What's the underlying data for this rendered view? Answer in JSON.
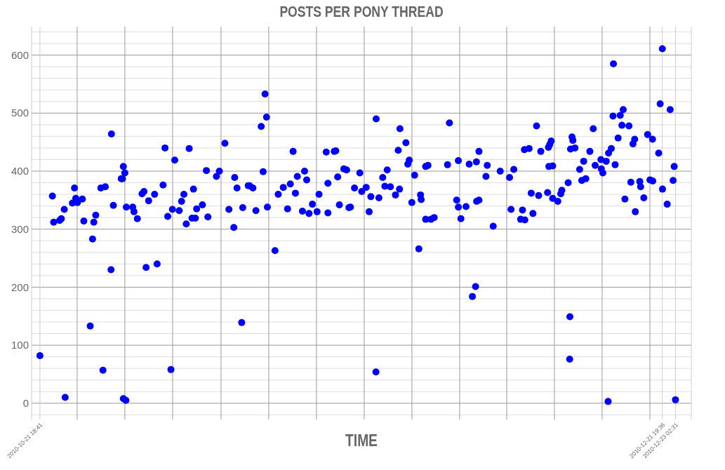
{
  "chart_data": {
    "type": "scatter",
    "title": "POSTS PER PONY THREAD",
    "xlabel": "TIME",
    "xlim": [
      "2010-10-20T23:00",
      "2010-12-24T15:48"
    ],
    "xticks": [
      {
        "value": "2010-10-21T18:41",
        "label": "2010-10-21 18:41"
      },
      {
        "value": "2010-10-25T10:18",
        "label": null
      },
      {
        "value": "2010-10-30T02:36",
        "label": null
      },
      {
        "value": "2010-11-03T18:54",
        "label": null
      },
      {
        "value": "2010-11-08T12:54",
        "label": null
      },
      {
        "value": "2010-11-13T05:12",
        "label": null
      },
      {
        "value": "2010-11-17T21:36",
        "label": null
      },
      {
        "value": "2010-11-22T13:54",
        "label": null
      },
      {
        "value": "2010-11-27T06:12",
        "label": null
      },
      {
        "value": "2010-12-01T22:36",
        "label": null
      },
      {
        "value": "2010-12-06T13:18",
        "label": null
      },
      {
        "value": "2010-12-11T05:36",
        "label": null
      },
      {
        "value": "2010-12-15T21:54",
        "label": null
      },
      {
        "value": "2010-12-20T14:18",
        "label": null
      },
      {
        "value": "2010-12-21T19:36",
        "label": "2010-12-21 19:36"
      },
      {
        "value": "2010-12-23T02:31",
        "label": "2010-12-23 02:31"
      }
    ],
    "ylim": [
      -28,
      649
    ],
    "yticks": [
      {
        "value": -20,
        "label": null
      },
      0,
      {
        "value": 20,
        "label": null
      },
      {
        "value": 40,
        "label": null
      },
      {
        "value": 60,
        "label": null
      },
      {
        "value": 80,
        "label": null
      },
      100,
      {
        "value": 120,
        "label": null
      },
      {
        "value": 140,
        "label": null
      },
      {
        "value": 160,
        "label": null
      },
      {
        "value": 180,
        "label": null
      },
      200,
      {
        "value": 220,
        "label": null
      },
      {
        "value": 240,
        "label": null
      },
      {
        "value": 260,
        "label": null
      },
      {
        "value": 280,
        "label": null
      },
      300,
      {
        "value": 320,
        "label": null
      },
      {
        "value": 340,
        "label": null
      },
      {
        "value": 360,
        "label": null
      },
      {
        "value": 380,
        "label": null
      },
      400,
      {
        "value": 420,
        "label": null
      },
      {
        "value": 440,
        "label": null
      },
      {
        "value": 460,
        "label": null
      },
      {
        "value": 480,
        "label": null
      },
      500,
      {
        "value": 520,
        "label": null
      },
      {
        "value": 540,
        "label": null
      },
      {
        "value": 560,
        "label": null
      },
      {
        "value": 580,
        "label": null
      },
      600,
      {
        "value": 620,
        "label": null
      },
      {
        "value": 640,
        "label": null
      }
    ],
    "grid": true,
    "marker": "circle",
    "series": [
      {
        "color": "#0000ff",
        "x": [
          "2010-10-21T18:41",
          "2010-10-23T00:00",
          "2010-10-23T03:00",
          "2010-10-23T17:00",
          "2010-10-23T21:00",
          "2010-10-24T04:00",
          "2010-10-24T06:00",
          "2010-10-24T23:00",
          "2010-10-25T04:00",
          "2010-10-25T07:00",
          "2010-10-25T11:00",
          "2010-10-25T22:30",
          "2010-10-26T02:00",
          "2010-10-26T17:00",
          "2010-10-26T22:30",
          "2010-10-27T01:30",
          "2010-10-27T06:00",
          "2010-10-27T18:00",
          "2010-10-27T23:00",
          "2010-10-28T04:30",
          "2010-10-28T18:00",
          "2010-10-28T19:00",
          "2010-10-28T23:30",
          "2010-10-29T18:00",
          "2010-10-29T21:00",
          "2010-10-29T23:00",
          "2010-10-29T23:00",
          "2010-10-30T02:30",
          "2010-10-30T05:00",
          "2010-10-30T06:00",
          "2010-10-30T21:00",
          "2010-10-31T00:00",
          "2010-10-31T08:00",
          "2010-10-31T19:00",
          "2010-10-31T23:30",
          "2010-11-01T04:30",
          "2010-11-01T10:30",
          "2010-11-02T00:30",
          "2010-11-02T06:30",
          "2010-11-02T20:30",
          "2010-11-03T01:00",
          "2010-11-03T07:30",
          "2010-11-03T15:00",
          "2010-11-03T18:30",
          "2010-11-04T00:00",
          "2010-11-04T10:30",
          "2010-11-04T16:00",
          "2010-11-04T21:30",
          "2010-11-05T03:00",
          "2010-11-05T10:00",
          "2010-11-05T16:30",
          "2010-11-05T20:00",
          "2010-11-06T00:30",
          "2010-11-06T03:30",
          "2010-11-06T17:00",
          "2010-11-07T02:30",
          "2010-11-07T06:00",
          "2010-11-08T02:00",
          "2010-11-08T09:00",
          "2010-11-08T22:00",
          "2010-11-09T07:30",
          "2010-11-09T19:00",
          "2010-11-09T21:00",
          "2010-11-10T02:30",
          "2010-11-10T13:30",
          "2010-11-10T16:00",
          "2010-11-11T05:00",
          "2010-11-11T08:00",
          "2010-11-11T16:00",
          "2010-11-11T23:00",
          "2010-11-12T11:30",
          "2010-11-12T16:00",
          "2010-11-12T20:30",
          "2010-11-13T00:00",
          "2010-11-13T02:00",
          "2010-11-13T20:00",
          "2010-11-14T03:30",
          "2010-11-14T15:30",
          "2010-11-15T01:30",
          "2010-11-15T08:00",
          "2010-11-15T14:30",
          "2010-11-15T20:00",
          "2010-11-16T00:30",
          "2010-11-16T12:30",
          "2010-11-16T17:30",
          "2010-11-16T22:30",
          "2010-11-17T04:00",
          "2010-11-17T12:00",
          "2010-11-17T23:00",
          "2010-11-18T03:30",
          "2010-11-18T20:30",
          "2010-11-19T00:30",
          "2010-11-19T00:30",
          "2010-11-19T15:30",
          "2010-11-19T19:00",
          "2010-11-19T23:30",
          "2010-11-20T03:30",
          "2010-11-20T14:00",
          "2010-11-20T20:30",
          "2010-11-21T02:00",
          "2010-11-21T05:30",
          "2010-11-21T15:00",
          "2010-11-22T03:30",
          "2010-11-22T08:00",
          "2010-11-22T18:30",
          "2010-11-23T01:30",
          "2010-11-23T05:30",
          "2010-11-23T17:30",
          "2010-11-23T18:00",
          "2010-11-24T00:30",
          "2010-11-24T09:30",
          "2010-11-24T14:30",
          "2010-11-24T20:00",
          "2010-11-25T03:30",
          "2010-11-25T15:30",
          "2010-11-25T22:00",
          "2010-11-26T01:00",
          "2010-11-26T02:00",
          "2010-11-26T16:00",
          "2010-11-26T20:30",
          "2010-11-27T00:00",
          "2010-11-27T06:00",
          "2010-11-27T12:30",
          "2010-11-27T22:30",
          "2010-11-28T02:30",
          "2010-11-28T04:00",
          "2010-11-28T14:30",
          "2010-11-28T14:30",
          "2010-11-28T20:00",
          "2010-11-29T03:00",
          "2010-11-29T10:30",
          "2010-11-30T18:00",
          "2010-11-30T22:30",
          "2010-12-01T15:30",
          "2010-12-01T19:30",
          "2010-12-01T19:30",
          "2010-12-02T01:30",
          "2010-12-02T13:30",
          "2010-12-02T21:00",
          "2010-12-03T04:30",
          "2010-12-03T12:00",
          "2010-12-03T14:30",
          "2010-12-03T14:00",
          "2010-12-03T20:00",
          "2010-12-03T20:00",
          "2010-12-04T12:30",
          "2010-12-04T15:30",
          "2010-12-05T05:30",
          "2010-12-05T22:00",
          "2010-12-06T20:00",
          "2010-12-06T23:30",
          "2010-12-07T06:00",
          "2010-12-07T22:00",
          "2010-12-08T02:30",
          "2010-12-08T07:00",
          "2010-12-08T08:00",
          "2010-12-08T18:00",
          "2010-12-08T23:00",
          "2010-12-09T03:00",
          "2010-12-09T11:30",
          "2010-12-09T16:30",
          "2010-12-09T21:30",
          "2010-12-10T13:30",
          "2010-12-10T15:30",
          "2010-12-10T16:30",
          "2010-12-10T18:30",
          "2010-12-10T22:00",
          "2010-12-11T01:30",
          "2010-12-11T01:30",
          "2010-12-11T13:30",
          "2010-12-11T20:30",
          "2010-12-11T23:00",
          "2010-12-12T14:00",
          "2010-12-12T17:30",
          "2010-12-12T18:00",
          "2010-12-12T19:30",
          "2010-12-12T23:00",
          "2010-12-13T01:00",
          "2010-12-13T06:00",
          "2010-12-13T17:00",
          "2010-12-13T22:00",
          "2010-12-14T02:30",
          "2010-12-14T07:30",
          "2010-12-14T17:00",
          "2010-12-15T01:00",
          "2010-12-15T05:30",
          "2010-12-15T19:00",
          "2010-12-15T20:00",
          "2010-12-15T23:30",
          "2010-12-16T07:30",
          "2010-12-16T12:00",
          "2010-12-16T13:00",
          "2010-12-16T19:30",
          "2010-12-16T23:30",
          "2010-12-17T00:30",
          "2010-12-17T04:30",
          "2010-12-17T11:30",
          "2010-12-17T16:30",
          "2010-12-17T20:30",
          "2010-12-17T23:30",
          "2010-12-18T03:30",
          "2010-12-18T13:00",
          "2010-12-18T17:30",
          "2010-12-18T22:30",
          "2010-12-19T02:30",
          "2010-12-19T04:00",
          "2010-12-19T14:30",
          "2010-12-19T16:30",
          "2010-12-20T00:00",
          "2010-12-20T09:00",
          "2010-12-20T14:30",
          "2010-12-20T20:30",
          "2010-12-20T21:00",
          "2010-12-21T11:00",
          "2010-12-21T14:30",
          "2010-12-21T19:36",
          "2010-12-21T20:00",
          "2010-12-22T07:00",
          "2010-12-22T14:00",
          "2010-12-22T21:00",
          "2010-12-22T23:30",
          "2010-12-23T02:31"
        ],
        "values": [
          82,
          357,
          312,
          315,
          318,
          334,
          10,
          345,
          371,
          353,
          346,
          352,
          314,
          133,
          283,
          312,
          324,
          371,
          57,
          373,
          230,
          464,
          341,
          387,
          387,
          408,
          8,
          397,
          5,
          338,
          338,
          330,
          318,
          361,
          365,
          234,
          349,
          360,
          240,
          376,
          440,
          322,
          58,
          334,
          419,
          332,
          348,
          360,
          309,
          439,
          319,
          369,
          319,
          335,
          342,
          401,
          321,
          391,
          400,
          448,
          334,
          303,
          389,
          371,
          139,
          337,
          375,
          375,
          371,
          332,
          477,
          399,
          533,
          493,
          338,
          263,
          360,
          372,
          335,
          378,
          434,
          362,
          391,
          331,
          400,
          385,
          327,
          343,
          330,
          360,
          433,
          379,
          328,
          434,
          435,
          390,
          342,
          404,
          402,
          337,
          338,
          371,
          397,
          365,
          372,
          330,
          356,
          54,
          490,
          354,
          389,
          374,
          402,
          373,
          359,
          436,
          369,
          473,
          449,
          412,
          419,
          346,
          393,
          266,
          359,
          351,
          317,
          408,
          410,
          317,
          320,
          411,
          483,
          350,
          418,
          338,
          318,
          339,
          412,
          184,
          201,
          348,
          416,
          350,
          434,
          391,
          410,
          305,
          400,
          389,
          334,
          403,
          317,
          333,
          437,
          316,
          439,
          362,
          327,
          478,
          358,
          434,
          363,
          441,
          408,
          446,
          452,
          409,
          353,
          348,
          361,
          367,
          380,
          76,
          149,
          438,
          459,
          453,
          440,
          403,
          384,
          417,
          387,
          434,
          473,
          410,
          420,
          404,
          397,
          417,
          3,
          431,
          439,
          495,
          585,
          411,
          457,
          496,
          479,
          506,
          352,
          478,
          381,
          447,
          455,
          330,
          382,
          373,
          354,
          463,
          385,
          455,
          383,
          431,
          516,
          611,
          369,
          343,
          506,
          384,
          408,
          6
        ]
      }
    ]
  }
}
